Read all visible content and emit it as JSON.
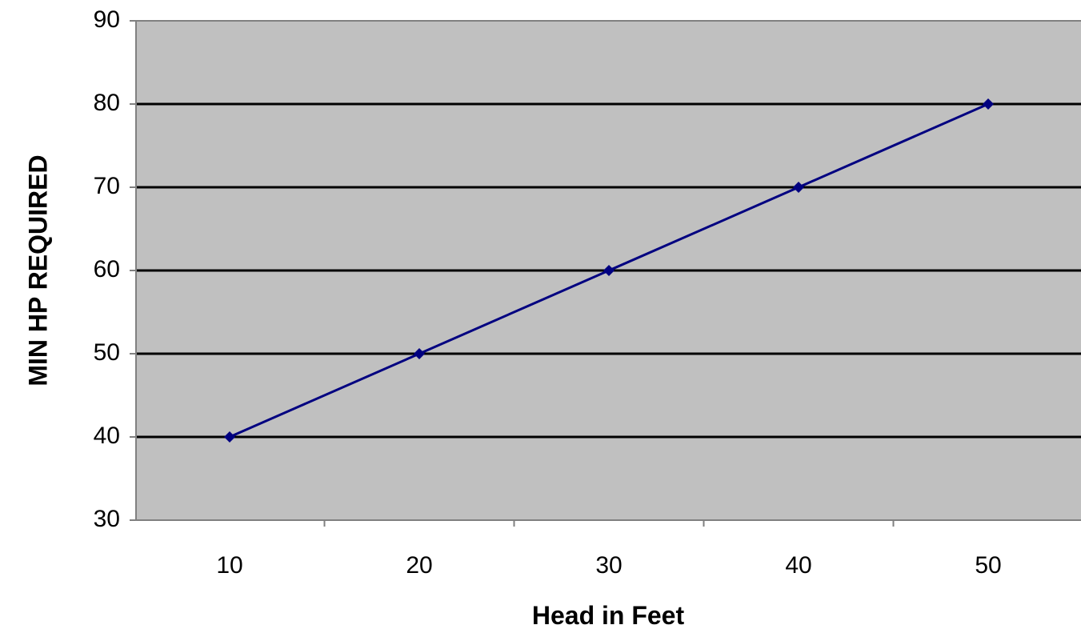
{
  "chart_data": {
    "type": "line",
    "title": "",
    "xlabel": "Head in Feet",
    "ylabel": "MIN HP REQUIRED",
    "categories": [
      "10",
      "20",
      "30",
      "40",
      "50"
    ],
    "series": [
      {
        "values": [
          40,
          50,
          60,
          70,
          80
        ]
      }
    ],
    "ylim": [
      30,
      90
    ],
    "yticks": [
      "30",
      "40",
      "50",
      "60",
      "70",
      "80",
      "90"
    ],
    "grid": "horizontal",
    "legend": "none",
    "marker": "diamond"
  },
  "colors": {
    "plot_background": "#c0c0c0",
    "series": "#000080",
    "gridline": "#000000",
    "axis": "#808080"
  }
}
